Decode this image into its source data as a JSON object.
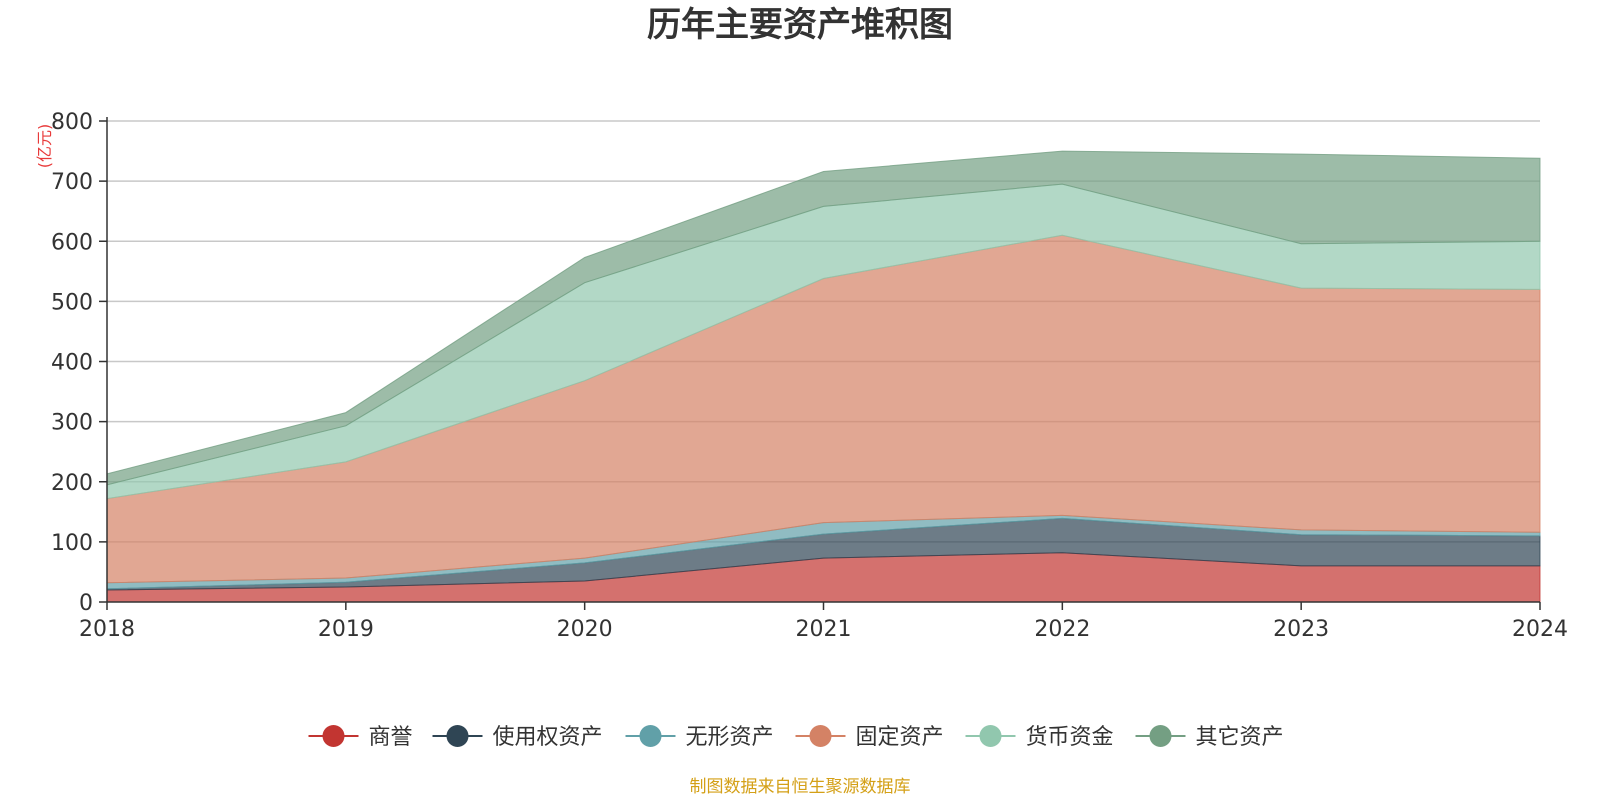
{
  "chart_data": {
    "type": "area",
    "stacked": true,
    "title": "历年主要资产堆积图",
    "unit_label": "(亿元)",
    "x": [
      "2018",
      "2019",
      "2020",
      "2021",
      "2022",
      "2023",
      "2024"
    ],
    "ylim": [
      0,
      800
    ],
    "yticks": [
      0,
      100,
      200,
      300,
      400,
      500,
      600,
      700,
      800
    ],
    "grid": true,
    "legend_position": "bottom",
    "series": [
      {
        "name": "商誉",
        "color": "#c23531",
        "values": [
          20,
          25,
          35,
          73,
          82,
          60,
          60
        ]
      },
      {
        "name": "使用权资产",
        "color": "#2f4554",
        "values": [
          2,
          8,
          30,
          40,
          57,
          52,
          50
        ]
      },
      {
        "name": "无形资产",
        "color": "#61a0a8",
        "values": [
          10,
          7,
          8,
          19,
          5,
          8,
          6
        ]
      },
      {
        "name": "固定资产",
        "color": "#d48265",
        "values": [
          140,
          193,
          295,
          406,
          466,
          402,
          404
        ]
      },
      {
        "name": "货币资金",
        "color": "#91c7ae",
        "values": [
          23,
          60,
          163,
          120,
          85,
          74,
          80
        ]
      },
      {
        "name": "其它资产",
        "color": "#749f83",
        "values": [
          18,
          22,
          42,
          58,
          55,
          149,
          138
        ]
      }
    ],
    "source_note": "制图数据来自恒生聚源数据库"
  }
}
